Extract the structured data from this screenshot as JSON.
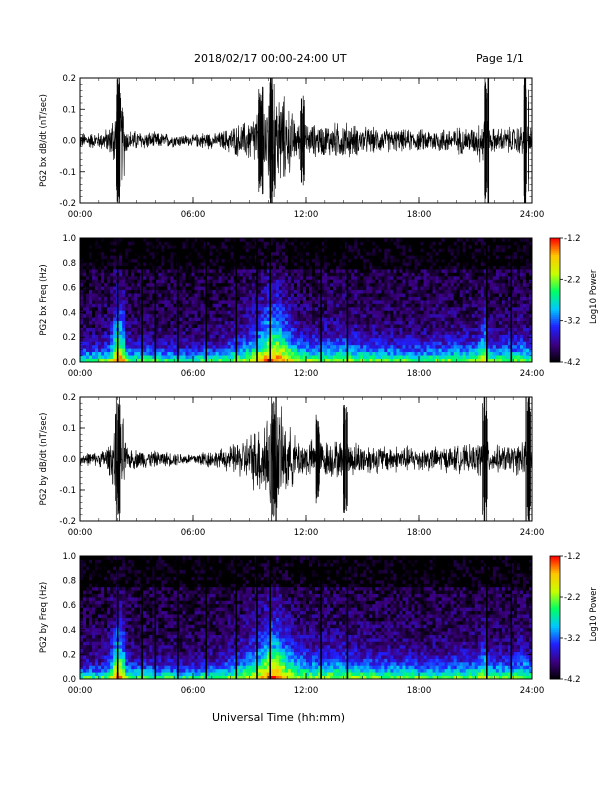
{
  "header": {
    "title": "2018/02/17  00:00-24:00 UT",
    "page": "Page 1/1"
  },
  "xlabel": "Universal Time (hh:mm)",
  "x_ticks": [
    "00:00",
    "06:00",
    "12:00",
    "18:00",
    "24:00"
  ],
  "colorbar": {
    "label": "Log10 Power",
    "ticks": [
      "-1.2",
      "-2.2",
      "-3.2",
      "-4.2"
    ],
    "range": [
      -4.2,
      -1.2
    ],
    "colormap": [
      "#000000",
      "#3b0080",
      "#2020ff",
      "#00c8ff",
      "#00ff64",
      "#c8ff00",
      "#ffc800",
      "#ff0000"
    ]
  },
  "chart_data": [
    {
      "type": "line",
      "ylabel": "PG2 bx dB/dt (nT/sec)",
      "xlim": [
        0,
        24
      ],
      "ylim": [
        -0.2,
        0.2
      ],
      "y_ticks": [
        "0.2",
        "0.1",
        "0.0",
        "-0.1",
        "-0.2"
      ],
      "color": "#000000",
      "envelope": {
        "hours": [
          0,
          1,
          1.6,
          2,
          2.3,
          2.5,
          4,
          6,
          6.7,
          7.2,
          8,
          8.8,
          9.5,
          10,
          10.5,
          11,
          11.5,
          12,
          13,
          14,
          15,
          16,
          17,
          18,
          19,
          20,
          21,
          21.5,
          21.7,
          22,
          23,
          23.5,
          24
        ],
        "amplitude": [
          0.03,
          0.03,
          0.05,
          0.2,
          0.16,
          0.04,
          0.03,
          0.02,
          0.035,
          0.025,
          0.05,
          0.07,
          0.12,
          0.2,
          0.2,
          0.14,
          0.07,
          0.06,
          0.06,
          0.07,
          0.05,
          0.045,
          0.04,
          0.04,
          0.045,
          0.05,
          0.05,
          0.12,
          0.05,
          0.045,
          0.05,
          0.06,
          0.05
        ]
      },
      "spikes": [
        {
          "hour": 2.0,
          "amplitude": 0.2
        },
        {
          "hour": 10.2,
          "amplitude": 0.2
        },
        {
          "hour": 21.6,
          "amplitude": 0.2
        },
        {
          "hour": 23.7,
          "amplitude": 0.2
        },
        {
          "hour": 9.6,
          "amplitude": 0.16
        },
        {
          "hour": 11.8,
          "amplitude": 0.14
        }
      ]
    },
    {
      "type": "heatmap",
      "ylabel": "PG2 bx Freq (Hz)",
      "xlim": [
        0,
        24
      ],
      "ylim": [
        0,
        1.0
      ],
      "y_ticks": [
        "1.0",
        "0.8",
        "0.6",
        "0.4",
        "0.2",
        "0.0"
      ],
      "z_range": [
        -4.2,
        -1.2
      ],
      "gap_hours": [
        2.0,
        3.3,
        4.0,
        5.2,
        6.7,
        8.3,
        9.4,
        10.1,
        12.8,
        14.2,
        21.6,
        22.9
      ]
    },
    {
      "type": "line",
      "ylabel": "PG2 by dB/dt (nT/sec)",
      "xlim": [
        0,
        24
      ],
      "ylim": [
        -0.2,
        0.2
      ],
      "y_ticks": [
        "0.2",
        "0.1",
        "0.0",
        "-0.1",
        "-0.2"
      ],
      "color": "#000000",
      "envelope": {
        "hours": [
          0,
          1,
          1.6,
          2,
          2.3,
          2.5,
          4,
          6,
          6.7,
          7.2,
          8,
          8.8,
          9.5,
          10,
          10.5,
          11,
          11.5,
          12,
          13,
          14,
          15,
          16,
          17,
          18,
          19,
          20,
          21,
          21.5,
          21.7,
          22,
          23,
          23.5,
          24
        ],
        "amplitude": [
          0.025,
          0.025,
          0.06,
          0.2,
          0.15,
          0.04,
          0.03,
          0.02,
          0.035,
          0.03,
          0.05,
          0.08,
          0.13,
          0.2,
          0.2,
          0.13,
          0.08,
          0.07,
          0.07,
          0.07,
          0.06,
          0.05,
          0.05,
          0.045,
          0.045,
          0.05,
          0.05,
          0.1,
          0.05,
          0.05,
          0.05,
          0.07,
          0.05
        ]
      },
      "spikes": [
        {
          "hour": 2.0,
          "amplitude": 0.2
        },
        {
          "hour": 10.3,
          "amplitude": 0.2
        },
        {
          "hour": 14.1,
          "amplitude": 0.17
        },
        {
          "hour": 21.5,
          "amplitude": 0.2
        },
        {
          "hour": 23.8,
          "amplitude": 0.2
        },
        {
          "hour": 12.6,
          "amplitude": 0.13
        }
      ]
    },
    {
      "type": "heatmap",
      "ylabel": "PG2 by Freq (Hz)",
      "xlim": [
        0,
        24
      ],
      "ylim": [
        0,
        1.0
      ],
      "y_ticks": [
        "1.0",
        "0.8",
        "0.6",
        "0.4",
        "0.2",
        "0.0"
      ],
      "z_range": [
        -4.2,
        -1.2
      ],
      "gap_hours": [
        2.0,
        3.3,
        4.0,
        5.2,
        6.7,
        8.3,
        9.4,
        10.1,
        12.8,
        14.2,
        21.6,
        22.9
      ]
    }
  ]
}
